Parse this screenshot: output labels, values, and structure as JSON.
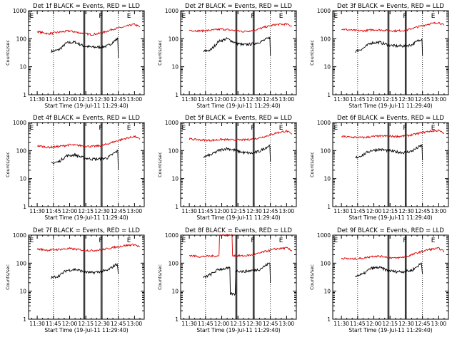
{
  "figure": {
    "xlabel": "Start Time (19-Jul-11 11:29:40)",
    "ylabel": "Counts/sec"
  },
  "colors": {
    "events": "#000000",
    "lld": "#dd0000",
    "axes": "#000000"
  },
  "chart_data": [
    {
      "type": "line",
      "title": "Det 1f BLACK = Events, RED = LLD",
      "x_ticks": [
        "11:30",
        "11:45",
        "12:00",
        "12:15",
        "12:30",
        "12:45",
        "13:00"
      ],
      "y_ticks": [
        "1",
        "10",
        "100",
        "1000"
      ],
      "ylim": [
        1,
        1000
      ],
      "log_y": true,
      "markers": [
        "E",
        "F",
        "E"
      ],
      "series": [
        {
          "name": "Events",
          "x": [
            "11:43",
            "11:50",
            "11:57",
            "12:05",
            "12:13",
            "12:20",
            "12:28",
            "12:35",
            "12:41",
            "12:44",
            "12:45"
          ],
          "y": [
            35,
            40,
            70,
            75,
            55,
            50,
            50,
            55,
            80,
            100,
            20
          ]
        },
        {
          "name": "LLD",
          "x": [
            "11:30",
            "11:40",
            "11:50",
            "12:00",
            "12:10",
            "12:20",
            "12:30",
            "12:40",
            "12:50",
            "13:00",
            "13:05"
          ],
          "y": [
            180,
            150,
            170,
            190,
            160,
            140,
            160,
            220,
            260,
            330,
            260
          ]
        }
      ]
    },
    {
      "type": "line",
      "title": "Det 2f BLACK = Events, RED = LLD",
      "x_ticks": [
        "11:30",
        "11:45",
        "12:00",
        "12:15",
        "12:30",
        "12:45",
        "13:00"
      ],
      "y_ticks": [
        "1",
        "10",
        "100",
        "1000"
      ],
      "ylim": [
        1,
        1000
      ],
      "log_y": true,
      "markers": [
        "E",
        "F",
        "E"
      ],
      "series": [
        {
          "name": "Events",
          "x": [
            "11:43",
            "11:50",
            "11:57",
            "12:05",
            "12:13",
            "12:20",
            "12:28",
            "12:35",
            "12:41",
            "12:44",
            "12:45"
          ],
          "y": [
            35,
            40,
            80,
            100,
            70,
            60,
            65,
            75,
            95,
            110,
            25
          ]
        },
        {
          "name": "LLD",
          "x": [
            "11:30",
            "11:40",
            "11:50",
            "12:00",
            "12:10",
            "12:20",
            "12:30",
            "12:40",
            "12:50",
            "13:00",
            "13:05"
          ],
          "y": [
            200,
            190,
            200,
            220,
            200,
            180,
            200,
            260,
            320,
            330,
            280
          ]
        }
      ]
    },
    {
      "type": "line",
      "title": "Det 3f BLACK = Events, RED = LLD",
      "x_ticks": [
        "11:30",
        "11:45",
        "12:00",
        "12:15",
        "12:30",
        "12:45",
        "13:00"
      ],
      "y_ticks": [
        "1",
        "10",
        "100",
        "1000"
      ],
      "ylim": [
        1,
        1000
      ],
      "log_y": true,
      "markers": [
        "E",
        "F",
        "E"
      ],
      "series": [
        {
          "name": "Events",
          "x": [
            "11:43",
            "11:50",
            "11:57",
            "12:05",
            "12:13",
            "12:20",
            "12:28",
            "12:35",
            "12:41",
            "12:44",
            "12:45"
          ],
          "y": [
            35,
            45,
            70,
            75,
            60,
            55,
            55,
            60,
            85,
            100,
            25
          ]
        },
        {
          "name": "LLD",
          "x": [
            "11:30",
            "11:40",
            "11:50",
            "12:00",
            "12:10",
            "12:20",
            "12:30",
            "12:40",
            "12:50",
            "13:00",
            "13:05"
          ],
          "y": [
            220,
            200,
            190,
            210,
            200,
            190,
            200,
            260,
            330,
            380,
            300
          ]
        }
      ]
    },
    {
      "type": "line",
      "title": "Det 4f BLACK = Events, RED = LLD",
      "x_ticks": [
        "11:30",
        "11:45",
        "12:00",
        "12:15",
        "12:30",
        "12:45",
        "13:00"
      ],
      "y_ticks": [
        "1",
        "10",
        "100",
        "1000"
      ],
      "ylim": [
        1,
        1000
      ],
      "log_y": true,
      "markers": [
        "E",
        "F",
        "E"
      ],
      "series": [
        {
          "name": "Events",
          "x": [
            "11:43",
            "11:50",
            "11:57",
            "12:05",
            "12:13",
            "12:20",
            "12:28",
            "12:35",
            "12:41",
            "12:44",
            "12:45"
          ],
          "y": [
            35,
            40,
            65,
            70,
            55,
            50,
            50,
            55,
            80,
            95,
            20
          ]
        },
        {
          "name": "LLD",
          "x": [
            "11:30",
            "11:40",
            "11:50",
            "12:00",
            "12:10",
            "12:20",
            "12:30",
            "12:40",
            "12:50",
            "13:00",
            "13:05"
          ],
          "y": [
            150,
            130,
            140,
            160,
            150,
            140,
            150,
            200,
            260,
            320,
            250
          ]
        }
      ]
    },
    {
      "type": "line",
      "title": "Det 5f BLACK = Events, RED = LLD",
      "x_ticks": [
        "11:30",
        "11:45",
        "12:00",
        "12:15",
        "12:30",
        "12:45",
        "13:00"
      ],
      "y_ticks": [
        "1",
        "10",
        "100",
        "1000"
      ],
      "ylim": [
        1,
        1000
      ],
      "log_y": true,
      "markers": [
        "E",
        "F",
        "E"
      ],
      "series": [
        {
          "name": "Events",
          "x": [
            "11:43",
            "11:50",
            "11:57",
            "12:05",
            "12:13",
            "12:20",
            "12:28",
            "12:35",
            "12:41",
            "12:44",
            "12:45"
          ],
          "y": [
            60,
            70,
            100,
            120,
            100,
            85,
            80,
            95,
            130,
            150,
            40
          ]
        },
        {
          "name": "LLD",
          "x": [
            "11:30",
            "11:40",
            "11:50",
            "12:00",
            "12:10",
            "12:20",
            "12:30",
            "12:40",
            "12:50",
            "13:00",
            "13:05"
          ],
          "y": [
            260,
            240,
            230,
            250,
            240,
            240,
            260,
            320,
            420,
            500,
            380
          ]
        }
      ]
    },
    {
      "type": "line",
      "title": "Det 6f BLACK = Events, RED = LLD",
      "x_ticks": [
        "11:30",
        "11:45",
        "12:00",
        "12:15",
        "12:30",
        "12:45",
        "13:00"
      ],
      "y_ticks": [
        "1",
        "10",
        "100",
        "1000"
      ],
      "ylim": [
        1,
        1000
      ],
      "log_y": true,
      "markers": [
        "E",
        "F",
        "E"
      ],
      "series": [
        {
          "name": "Events",
          "x": [
            "11:43",
            "11:50",
            "11:57",
            "12:05",
            "12:13",
            "12:20",
            "12:28",
            "12:35",
            "12:41",
            "12:44",
            "12:45"
          ],
          "y": [
            55,
            70,
            100,
            110,
            100,
            90,
            85,
            95,
            130,
            150,
            45
          ]
        },
        {
          "name": "LLD",
          "x": [
            "11:30",
            "11:40",
            "11:50",
            "12:00",
            "12:10",
            "12:20",
            "12:30",
            "12:40",
            "12:50",
            "13:00",
            "13:05"
          ],
          "y": [
            320,
            300,
            290,
            320,
            330,
            320,
            330,
            400,
            480,
            520,
            400
          ]
        }
      ]
    },
    {
      "type": "line",
      "title": "Det 7f BLACK = Events, RED = LLD",
      "x_ticks": [
        "11:30",
        "11:45",
        "12:00",
        "12:15",
        "12:30",
        "12:45",
        "13:00"
      ],
      "y_ticks": [
        "1",
        "10",
        "100",
        "1000"
      ],
      "ylim": [
        1,
        1000
      ],
      "log_y": true,
      "markers": [
        "E",
        "F",
        "E"
      ],
      "series": [
        {
          "name": "Events",
          "x": [
            "11:43",
            "11:50",
            "11:57",
            "12:05",
            "12:13",
            "12:20",
            "12:28",
            "12:35",
            "12:41",
            "12:44",
            "12:45"
          ],
          "y": [
            30,
            35,
            55,
            60,
            50,
            45,
            50,
            55,
            80,
            95,
            40
          ]
        },
        {
          "name": "LLD",
          "x": [
            "11:30",
            "11:40",
            "11:50",
            "12:00",
            "12:10",
            "12:20",
            "12:30",
            "12:40",
            "12:50",
            "13:00",
            "13:05"
          ],
          "y": [
            320,
            290,
            310,
            330,
            300,
            280,
            300,
            360,
            420,
            460,
            380
          ]
        }
      ]
    },
    {
      "type": "line",
      "title": "Det 8f BLACK = Events, RED = LLD",
      "x_ticks": [
        "11:30",
        "11:45",
        "12:00",
        "12:15",
        "12:30",
        "12:45",
        "13:00"
      ],
      "y_ticks": [
        "1",
        "10",
        "100",
        "1000"
      ],
      "ylim": [
        1,
        1000
      ],
      "log_y": true,
      "markers": [
        "E",
        "F",
        "E"
      ],
      "series": [
        {
          "name": "Events",
          "x": [
            "11:43",
            "11:50",
            "11:57",
            "12:05",
            "12:08",
            "12:13",
            "12:20",
            "12:28",
            "12:35",
            "12:41",
            "12:44",
            "12:45"
          ],
          "y": [
            30,
            40,
            60,
            65,
            8,
            55,
            50,
            55,
            60,
            85,
            100,
            20
          ]
        },
        {
          "name": "LLD",
          "x": [
            "11:30",
            "11:40",
            "11:50",
            "11:58",
            "12:03",
            "12:10",
            "12:20",
            "12:30",
            "12:40",
            "12:50",
            "13:00",
            "13:05"
          ],
          "y": [
            190,
            170,
            180,
            1000,
            1000,
            190,
            180,
            200,
            260,
            320,
            350,
            270
          ]
        }
      ]
    },
    {
      "type": "line",
      "title": "Det 9f BLACK = Events, RED = LLD",
      "x_ticks": [
        "11:30",
        "11:45",
        "12:00",
        "12:15",
        "12:30",
        "12:45",
        "13:00"
      ],
      "y_ticks": [
        "1",
        "10",
        "100",
        "1000"
      ],
      "ylim": [
        1,
        1000
      ],
      "log_y": true,
      "markers": [
        "E",
        "F",
        "E"
      ],
      "series": [
        {
          "name": "Events",
          "x": [
            "11:43",
            "11:50",
            "11:57",
            "12:05",
            "12:13",
            "12:20",
            "12:28",
            "12:35",
            "12:41",
            "12:44",
            "12:45"
          ],
          "y": [
            35,
            40,
            65,
            70,
            55,
            50,
            50,
            55,
            80,
            100,
            40
          ]
        },
        {
          "name": "LLD",
          "x": [
            "11:30",
            "11:40",
            "11:50",
            "12:00",
            "12:10",
            "12:20",
            "12:30",
            "12:40",
            "12:50",
            "13:00",
            "13:05"
          ],
          "y": [
            150,
            140,
            150,
            180,
            170,
            150,
            170,
            230,
            300,
            340,
            260
          ]
        }
      ]
    }
  ]
}
